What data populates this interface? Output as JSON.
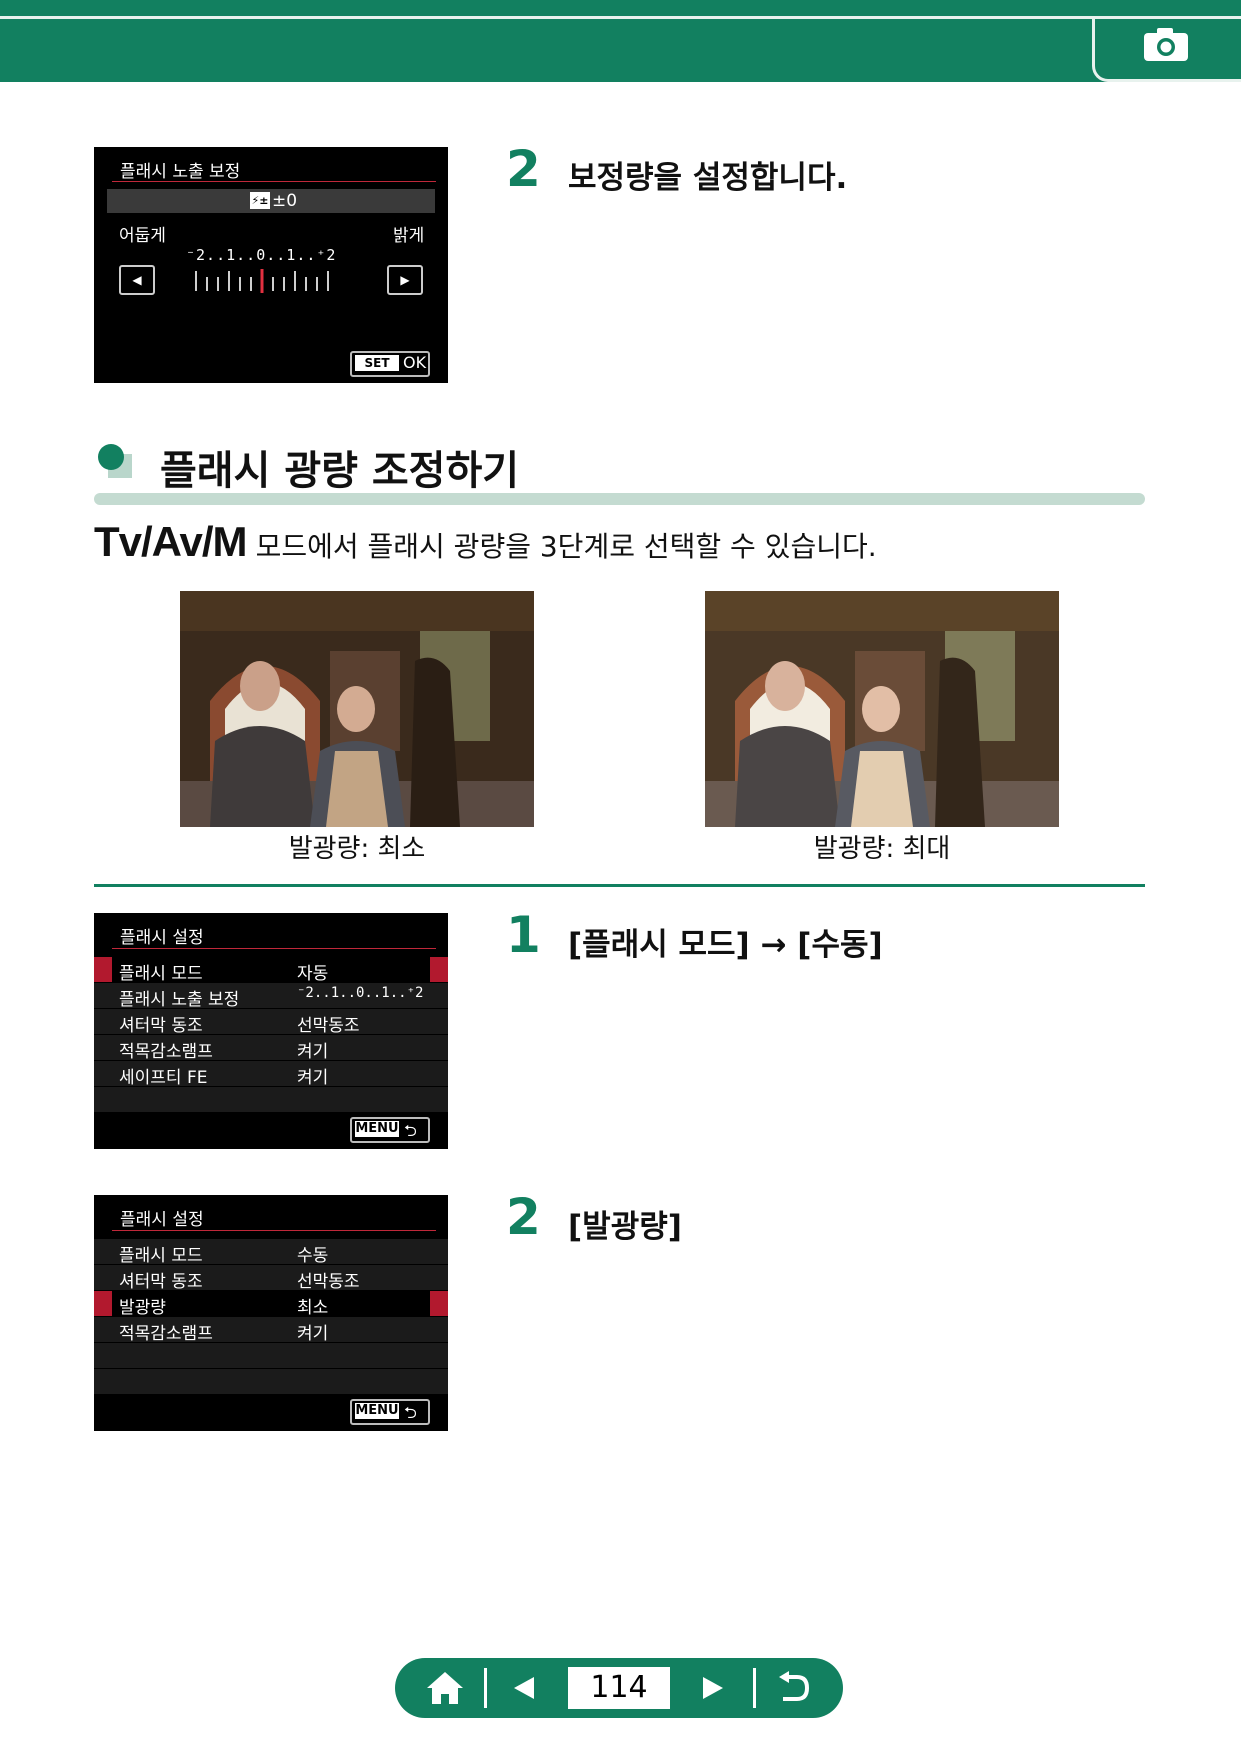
{
  "header": {
    "icon": "camera-icon",
    "color": "#128060"
  },
  "screen1": {
    "title": "플래시 노출 보정",
    "value": "±0",
    "left_label": "어둡게",
    "right_label": "밝게",
    "scale": "⁻2..1..0..1..⁺2",
    "set_label": "SET",
    "ok_label": "OK"
  },
  "step_a": {
    "number": "2",
    "text": "보정량을 설정합니다."
  },
  "section": {
    "title": "플래시 광량 조정하기"
  },
  "intro": {
    "modes": "Tv/Av/M",
    "text": "모드에서 플래시 광량을 3단계로 선택할 수 있습니다."
  },
  "photos": [
    {
      "caption": "발광량: 최소"
    },
    {
      "caption": "발광량: 최대"
    }
  ],
  "screen2": {
    "title": "플래시 설정",
    "rows": [
      {
        "label": "플래시 모드",
        "value": "자동"
      },
      {
        "label": "플래시 노출 보정",
        "value": "⁻2..1..0..1..⁺2"
      },
      {
        "label": "셔터막 동조",
        "value": "선막동조"
      },
      {
        "label": "적목감소램프",
        "value": "켜기"
      },
      {
        "label": "세이프티 FE",
        "value": "켜기"
      }
    ],
    "menu_label": "MENU"
  },
  "step_b": {
    "number": "1",
    "text": "[플래시 모드] → [수동]"
  },
  "screen3": {
    "title": "플래시 설정",
    "rows": [
      {
        "label": "플래시 모드",
        "value": "수동"
      },
      {
        "label": "셔터막 동조",
        "value": "선막동조"
      },
      {
        "label": "발광량",
        "value": "최소"
      },
      {
        "label": "적목감소램프",
        "value": "켜기"
      }
    ],
    "menu_label": "MENU"
  },
  "step_c": {
    "number": "2",
    "text": "[발광량]"
  },
  "footer": {
    "page": "114"
  }
}
